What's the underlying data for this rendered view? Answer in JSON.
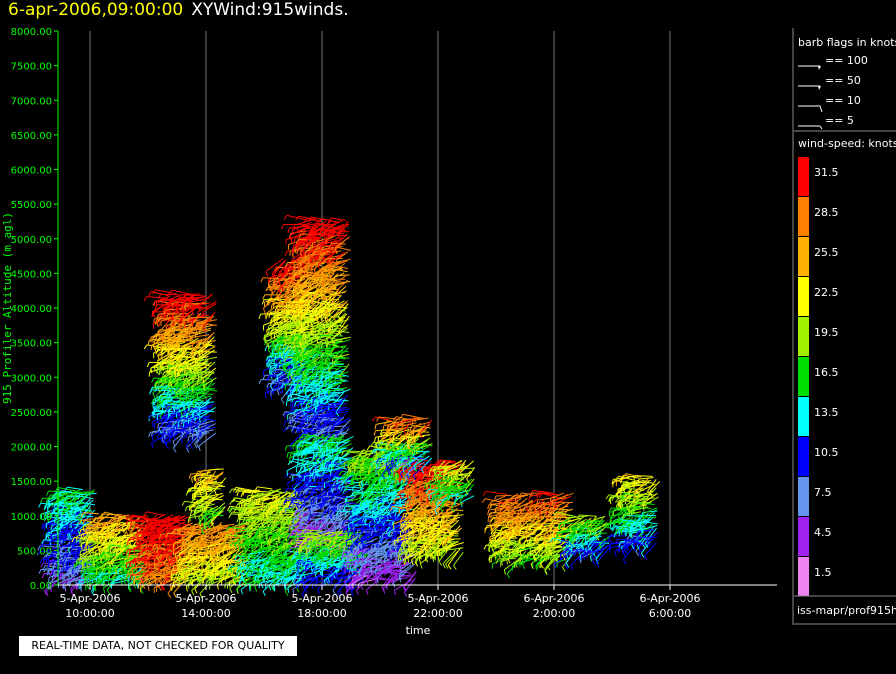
{
  "title": {
    "datetime": "6-apr-2006,09:00:00",
    "name": "XYWind:915winds."
  },
  "quality_note": "REAL-TIME DATA, NOT CHECKED FOR QUALITY",
  "legend": {
    "barb_title": "barb flags in knots",
    "barbs": [
      {
        "label": "== 100",
        "knots": 100
      },
      {
        "label": "== 50",
        "knots": 50
      },
      {
        "label": "== 10",
        "knots": 10
      },
      {
        "label": "== 5",
        "knots": 5
      }
    ],
    "speed_title": "wind-speed: knots",
    "speed_bins": [
      {
        "label": "31.5",
        "color": "#ff0000"
      },
      {
        "label": "28.5",
        "color": "#ff7f00"
      },
      {
        "label": "25.5",
        "color": "#ffb000"
      },
      {
        "label": "22.5",
        "color": "#ffff00"
      },
      {
        "label": "19.5",
        "color": "#a0f000"
      },
      {
        "label": "16.5",
        "color": "#00e000"
      },
      {
        "label": "13.5",
        "color": "#00ffff"
      },
      {
        "label": "10.5",
        "color": "#0000ff"
      },
      {
        "label": "7.5",
        "color": "#6495ed"
      },
      {
        "label": "4.5",
        "color": "#a020f0"
      },
      {
        "label": "1.5",
        "color": "#ee82ee"
      }
    ],
    "source": "iss-mapr/prof915h"
  },
  "chart_data": {
    "type": "scatter",
    "title": "XYWind:915winds.",
    "xlabel": "time",
    "ylabel": "915 Profiler Altitude (m agl)",
    "ylim": [
      0,
      8000
    ],
    "yticks": [
      "0.00",
      "500.00",
      "1000.00",
      "1500.00",
      "2000.00",
      "2500.00",
      "3000.00",
      "3500.00",
      "4000.00",
      "4500.00",
      "5000.00",
      "5500.00",
      "6000.00",
      "6500.00",
      "7000.00",
      "7500.00",
      "8000.00"
    ],
    "xlim_hours": [
      9,
      28
    ],
    "xticks": [
      {
        "hour": 10,
        "date": "5-Apr-2006",
        "time": "10:00:00"
      },
      {
        "hour": 14,
        "date": "5-Apr-2006",
        "time": "14:00:00"
      },
      {
        "hour": 18,
        "date": "5-Apr-2006",
        "time": "18:00:00"
      },
      {
        "hour": 22,
        "date": "5-Apr-2006",
        "time": "22:00:00"
      },
      {
        "hour": 26,
        "date": "6-Apr-2006",
        "time": "2:00:00"
      },
      {
        "hour": 30,
        "date": "6-Apr-2006",
        "time": "6:00:00"
      }
    ],
    "grid": "vertical",
    "series_note": "wind barbs colored by wind speed (knots)",
    "regions": [
      {
        "t0": 9.0,
        "t1": 10.2,
        "z0": 100,
        "z1": 1400,
        "s0": 6,
        "s1": 16
      },
      {
        "t0": 10.2,
        "t1": 12.0,
        "z0": 100,
        "z1": 1000,
        "s0": 14,
        "s1": 26
      },
      {
        "t0": 12.0,
        "t1": 13.5,
        "z0": 100,
        "z1": 1000,
        "s0": 28,
        "s1": 33
      },
      {
        "t0": 13.5,
        "t1": 15.5,
        "z0": 100,
        "z1": 900,
        "s0": 20,
        "s1": 28
      },
      {
        "t0": 15.5,
        "t1": 17.5,
        "z0": 100,
        "z1": 1400,
        "s0": 14,
        "s1": 22
      },
      {
        "t0": 12.7,
        "t1": 14.4,
        "z0": 2200,
        "z1": 4200,
        "s0": 8,
        "s1": 33
      },
      {
        "t0": 14.0,
        "t1": 14.7,
        "z0": 1000,
        "z1": 1700,
        "s0": 18,
        "s1": 26
      },
      {
        "t0": 16.6,
        "t1": 17.6,
        "z0": 2900,
        "z1": 4700,
        "s0": 8,
        "s1": 33
      },
      {
        "t0": 17.4,
        "t1": 19.0,
        "z0": 2200,
        "z1": 5300,
        "s0": 8,
        "s1": 33
      },
      {
        "t0": 17.5,
        "t1": 19.2,
        "z0": 600,
        "z1": 2200,
        "s0": 4,
        "s1": 16
      },
      {
        "t0": 17.6,
        "t1": 19.6,
        "z0": 100,
        "z1": 800,
        "s0": 10,
        "s1": 20
      },
      {
        "t0": 19.3,
        "t1": 21.2,
        "z0": 100,
        "z1": 2000,
        "s0": 4,
        "s1": 20
      },
      {
        "t0": 21.2,
        "t1": 22.9,
        "z0": 500,
        "z1": 1800,
        "s0": 20,
        "s1": 33
      },
      {
        "t0": 20.4,
        "t1": 21.8,
        "z0": 1800,
        "z1": 2400,
        "s0": 10,
        "s1": 30
      },
      {
        "t0": 22.3,
        "t1": 23.2,
        "z0": 1300,
        "z1": 1800,
        "s0": 14,
        "s1": 24
      },
      {
        "t0": 24.3,
        "t1": 26.7,
        "z0": 400,
        "z1": 1300,
        "s0": 18,
        "s1": 30
      },
      {
        "t0": 26.7,
        "t1": 28.0,
        "z0": 500,
        "z1": 1000,
        "s0": 10,
        "s1": 20
      },
      {
        "t0": 28.5,
        "t1": 29.6,
        "z0": 600,
        "z1": 1600,
        "s0": 10,
        "s1": 24
      }
    ]
  }
}
